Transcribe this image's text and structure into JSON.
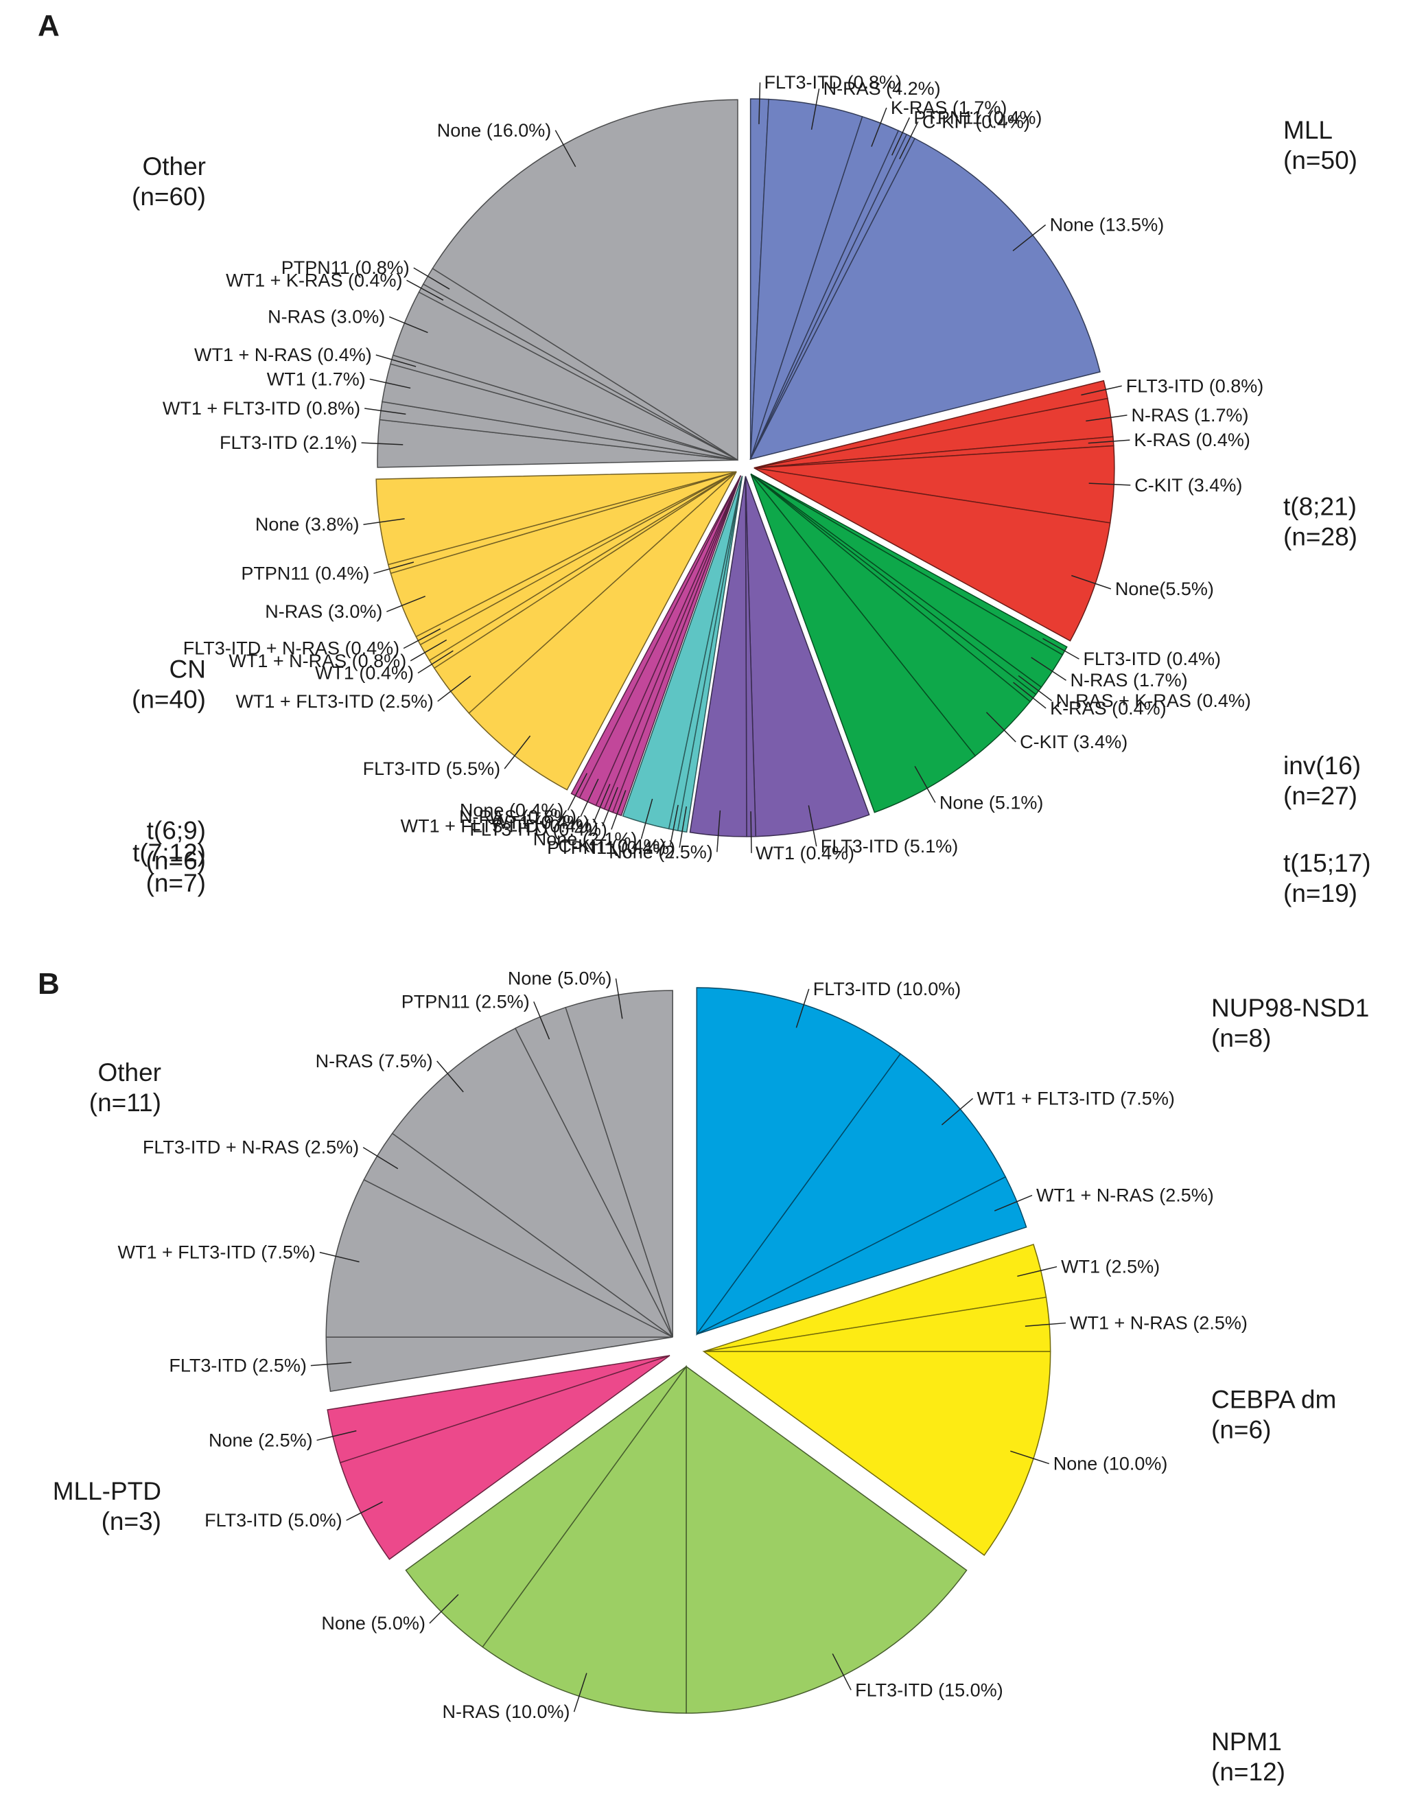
{
  "chart_data": [
    {
      "panel": "A",
      "type": "pie",
      "groups": [
        {
          "name": "MLL",
          "n": "(n=50)",
          "color": "#7082c2",
          "segments": [
            {
              "label": "FLT3-ITD (0.8%)",
              "value": 0.8
            },
            {
              "label": "N-RAS (4.2%)",
              "value": 4.2
            },
            {
              "label": "K-RAS (1.7%)",
              "value": 1.7
            },
            {
              "label": "PTPN11 (0.4%)",
              "value": 0.4
            },
            {
              "label": "C-KIT (0.4%)",
              "value": 0.4
            },
            {
              "label": "None (13.5%)",
              "value": 13.5
            }
          ]
        },
        {
          "name": "t(8;21)",
          "n": "(n=28)",
          "color": "#e83c32",
          "segments": [
            {
              "label": "FLT3-ITD (0.8%)",
              "value": 0.8
            },
            {
              "label": "N-RAS (1.7%)",
              "value": 1.7
            },
            {
              "label": "K-RAS (0.4%)",
              "value": 0.4
            },
            {
              "label": "C-KIT (3.4%)",
              "value": 3.4
            },
            {
              "label": "None(5.5%)",
              "value": 5.5
            }
          ]
        },
        {
          "name": "inv(16)",
          "n": "(n=27)",
          "color": "#0ea84a",
          "segments": [
            {
              "label": "FLT3-ITD (0.4%)",
              "value": 0.4
            },
            {
              "label": "N-RAS (1.7%)",
              "value": 1.7
            },
            {
              "label": "N-RAS + K-RAS (0.4%)",
              "value": 0.4
            },
            {
              "label": "K-RAS (0.4%)",
              "value": 0.4
            },
            {
              "label": "C-KIT (3.4%)",
              "value": 3.4
            },
            {
              "label": "None (5.1%)",
              "value": 5.1
            }
          ]
        },
        {
          "name": "t(15;17)",
          "n": "(n=19)",
          "color": "#7b5eab",
          "segments": [
            {
              "label": "FLT3-ITD (5.1%)",
              "value": 5.1
            },
            {
              "label": "WT1 (0.4%)",
              "value": 0.4
            },
            {
              "label": "None (2.5%)",
              "value": 2.5
            }
          ]
        },
        {
          "name": "t(7;12)",
          "n": "(n=7)",
          "color": "#5ec5c4",
          "segments": [
            {
              "label": "PTPN11 (0.4%)",
              "value": 0.4
            },
            {
              "label": "C-KIT (0.4%)",
              "value": 0.4
            },
            {
              "label": "None (2.1%)",
              "value": 2.1
            }
          ]
        },
        {
          "name": "t(6;9)",
          "n": "(n=6)",
          "color": "#c2479a",
          "segments": [
            {
              "label": "FLT3-ITD (0.4%)",
              "value": 0.4
            },
            {
              "label": "WT1 + FLT3-ITD (0.4%)",
              "value": 0.4
            },
            {
              "label": "WT1 (0.4%)",
              "value": 0.4
            },
            {
              "label": "N-RAS (0.8%)",
              "value": 0.8
            },
            {
              "label": "None (0.4%)",
              "value": 0.4
            }
          ]
        },
        {
          "name": "CN",
          "n": "(n=40)",
          "color": "#fdd34e",
          "segments": [
            {
              "label": "FLT3-ITD (5.5%)",
              "value": 5.5
            },
            {
              "label": "WT1 + FLT3-ITD (2.5%)",
              "value": 2.5
            },
            {
              "label": "WT1 (0.4%)",
              "value": 0.4
            },
            {
              "label": "WT1 + N-RAS (0.8%)",
              "value": 0.8
            },
            {
              "label": "FLT3-ITD + N-RAS (0.4%)",
              "value": 0.4
            },
            {
              "label": "N-RAS (3.0%)",
              "value": 3.0
            },
            {
              "label": "PTPN11 (0.4%)",
              "value": 0.4
            },
            {
              "label": "None (3.8%)",
              "value": 3.8
            }
          ]
        },
        {
          "name": "Other",
          "n": "(n=60)",
          "color": "#a7a8ac",
          "segments": [
            {
              "label": "FLT3-ITD (2.1%)",
              "value": 2.1
            },
            {
              "label": "WT1 + FLT3-ITD (0.8%)",
              "value": 0.8
            },
            {
              "label": "WT1 (1.7%)",
              "value": 1.7
            },
            {
              "label": "WT1 + N-RAS (0.4%)",
              "value": 0.4
            },
            {
              "label": "N-RAS (3.0%)",
              "value": 3.0
            },
            {
              "label": "WT1 + K-RAS (0.4%)",
              "value": 0.4
            },
            {
              "label": "PTPN11 (0.8%)",
              "value": 0.8
            },
            {
              "label": "None (16.0%)",
              "value": 16.0
            }
          ]
        }
      ]
    },
    {
      "panel": "B",
      "type": "pie",
      "groups": [
        {
          "name": "NUP98-NSD1",
          "n": "(n=8)",
          "color": "#00a1e0",
          "segments": [
            {
              "label": "FLT3-ITD (10.0%)",
              "value": 10.0
            },
            {
              "label": "WT1 + FLT3-ITD (7.5%)",
              "value": 7.5
            },
            {
              "label": "WT1 + N-RAS (2.5%)",
              "value": 2.5
            }
          ]
        },
        {
          "name": "CEBPA dm",
          "n": "(n=6)",
          "color": "#fdeb14",
          "segments": [
            {
              "label": "WT1 (2.5%)",
              "value": 2.5
            },
            {
              "label": "WT1 + N-RAS (2.5%)",
              "value": 2.5
            },
            {
              "label": "None (10.0%)",
              "value": 10.0
            }
          ]
        },
        {
          "name": "NPM1",
          "n": "(n=12)",
          "color": "#9ccf64",
          "segments": [
            {
              "label": "FLT3-ITD (15.0%)",
              "value": 15.0
            },
            {
              "label": "N-RAS (10.0%)",
              "value": 10.0
            },
            {
              "label": "None (5.0%)",
              "value": 5.0
            }
          ]
        },
        {
          "name": "MLL-PTD",
          "n": "(n=3)",
          "color": "#ec498b",
          "segments": [
            {
              "label": "FLT3-ITD (5.0%)",
              "value": 5.0
            },
            {
              "label": "None (2.5%)",
              "value": 2.5
            }
          ]
        },
        {
          "name": "Other",
          "n": "(n=11)",
          "color": "#a7a8ac",
          "segments": [
            {
              "label": "FLT3-ITD (2.5%)",
              "value": 2.5
            },
            {
              "label": "WT1 + FLT3-ITD (7.5%)",
              "value": 7.5
            },
            {
              "label": "FLT3-ITD + N-RAS (2.5%)",
              "value": 2.5
            },
            {
              "label": "N-RAS (7.5%)",
              "value": 7.5
            },
            {
              "label": "PTPN11 (2.5%)",
              "value": 2.5
            },
            {
              "label": "None (5.0%)",
              "value": 5.0
            }
          ]
        }
      ]
    }
  ]
}
